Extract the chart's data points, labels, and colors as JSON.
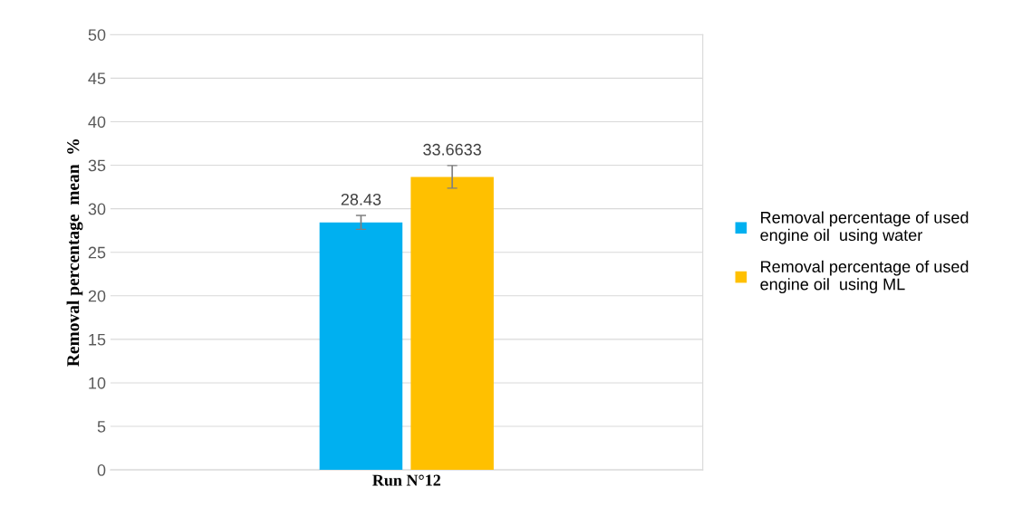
{
  "chart_data": {
    "type": "bar",
    "ylabel": "Removal percentage  mean  %",
    "categories": [
      "Run N°12"
    ],
    "series": [
      {
        "name": "Removal percentage of used\nengine oil  using water",
        "color": "#00b0f0",
        "values": [
          28.43
        ],
        "errors": [
          0.8
        ]
      },
      {
        "name": "Removal percentage of used\nengine oil  using ML",
        "color": "#ffc000",
        "values": [
          33.6633
        ],
        "errors": [
          1.3
        ]
      }
    ],
    "ylim": [
      0,
      50
    ],
    "yticks": [
      0,
      5,
      10,
      15,
      20,
      25,
      30,
      35,
      40,
      45,
      50
    ],
    "grid": "y",
    "legend": "right",
    "data_labels": true
  }
}
